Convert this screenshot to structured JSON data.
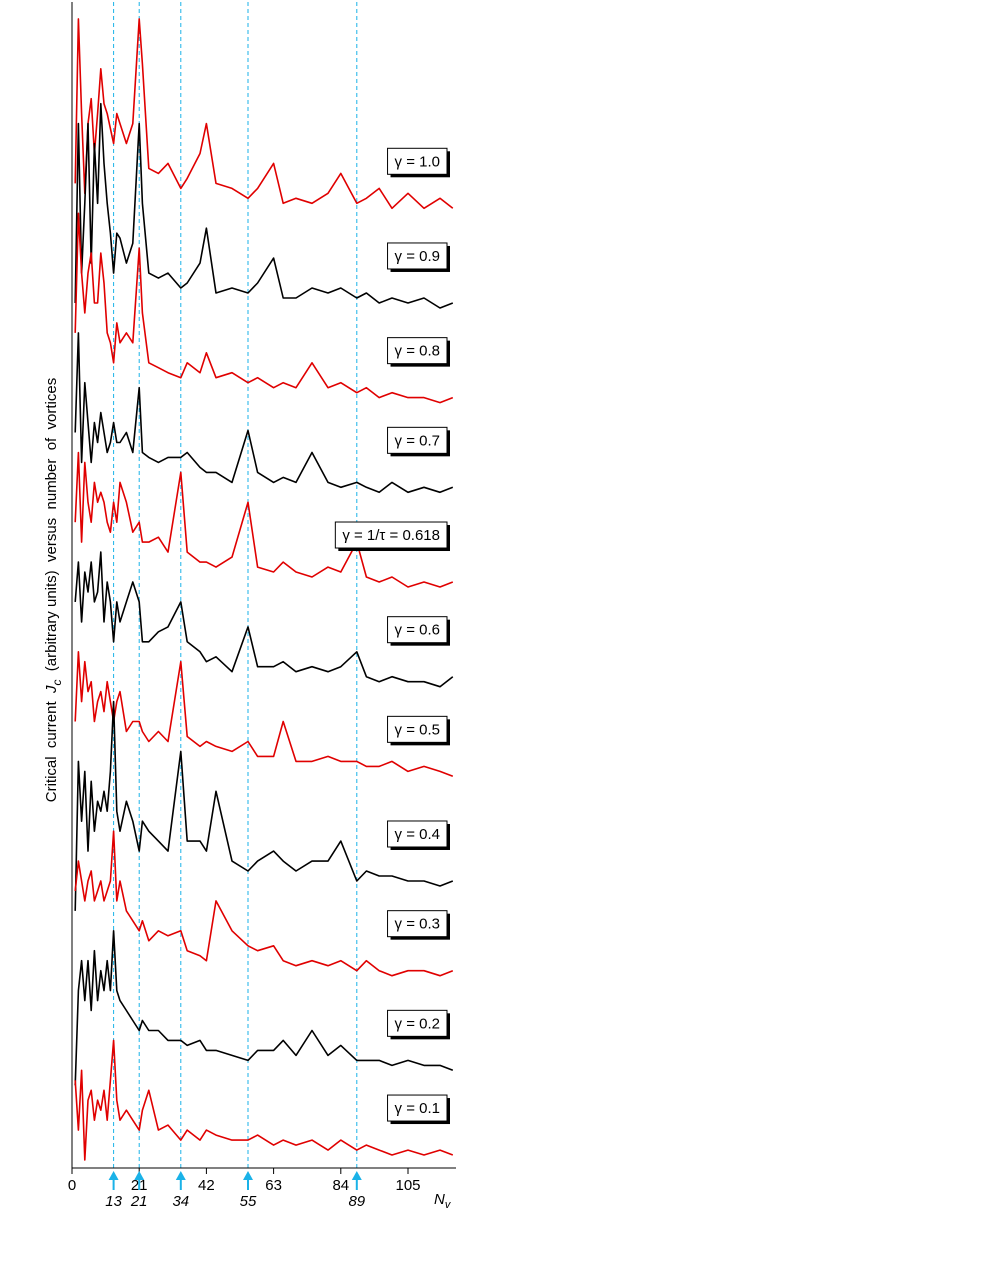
{
  "chart_data": {
    "type": "line",
    "ylabel_parts": [
      "Critical  current  ",
      "J",
      "c",
      "  (arbitrary units)  versus  number  of  vortices"
    ],
    "xlabel": "N",
    "xlabel_subscript": "v",
    "xlim": [
      0,
      120
    ],
    "ylim": [
      0,
      1170
    ],
    "xticks": [
      0,
      21,
      42,
      63,
      84,
      105
    ],
    "marker_ticks": [
      13,
      21,
      34,
      55,
      89
    ],
    "marker_color": "#1ab2e8",
    "x": [
      1,
      2,
      3,
      4,
      5,
      6,
      7,
      8,
      9,
      10,
      11,
      12,
      13,
      14,
      15,
      17,
      19,
      21,
      22,
      24,
      27,
      30,
      34,
      36,
      40,
      42,
      45,
      50,
      55,
      58,
      63,
      66,
      70,
      75,
      80,
      84,
      89,
      92,
      96,
      100,
      105,
      110,
      115,
      119
    ],
    "series": [
      {
        "name": "γ = 1.0",
        "color": "#e00000",
        "values": [
          988,
          1153,
          1058,
          978,
          1048,
          1073,
          1018,
          1058,
          1103,
          1068,
          1058,
          1043,
          1028,
          1058,
          1048,
          1028,
          1048,
          1153,
          1108,
          1003,
          998,
          1008,
          983,
          993,
          1018,
          1048,
          988,
          983,
          973,
          983,
          1008,
          968,
          973,
          968,
          978,
          998,
          968,
          973,
          983,
          963,
          978,
          963,
          973,
          963
        ]
      },
      {
        "name": "γ = 0.9",
        "color": "#000000",
        "values": [
          868,
          1048,
          898,
          968,
          1048,
          908,
          1028,
          968,
          1068,
          1008,
          968,
          938,
          898,
          938,
          933,
          908,
          928,
          1048,
          968,
          898,
          893,
          898,
          883,
          888,
          908,
          943,
          878,
          883,
          878,
          888,
          913,
          873,
          873,
          883,
          878,
          883,
          873,
          878,
          868,
          873,
          868,
          873,
          863,
          868
        ]
      },
      {
        "name": "γ = 0.8",
        "color": "#e00000",
        "values": [
          838,
          958,
          898,
          858,
          898,
          918,
          868,
          868,
          918,
          888,
          838,
          828,
          808,
          848,
          828,
          838,
          828,
          923,
          858,
          808,
          803,
          798,
          793,
          808,
          798,
          818,
          793,
          798,
          788,
          793,
          783,
          788,
          783,
          808,
          783,
          788,
          778,
          783,
          773,
          778,
          773,
          773,
          768,
          773
        ]
      },
      {
        "name": "γ = 0.7",
        "color": "#000000",
        "values": [
          738,
          838,
          708,
          788,
          748,
          708,
          748,
          728,
          758,
          738,
          718,
          728,
          748,
          728,
          728,
          738,
          718,
          783,
          718,
          713,
          708,
          713,
          713,
          718,
          703,
          698,
          698,
          688,
          740,
          698,
          688,
          693,
          688,
          718,
          688,
          683,
          688,
          683,
          678,
          688,
          678,
          683,
          678,
          683
        ]
      },
      {
        "name": "γ = 1/τ = 0.618",
        "color": "#e00000",
        "values": [
          648,
          718,
          628,
          708,
          668,
          648,
          688,
          668,
          678,
          668,
          648,
          638,
          668,
          648,
          688,
          668,
          638,
          648,
          628,
          628,
          633,
          618,
          698,
          618,
          608,
          608,
          603,
          613,
          668,
          603,
          598,
          608,
          598,
          593,
          603,
          598,
          628,
          593,
          588,
          593,
          583,
          588,
          583,
          588
        ]
      },
      {
        "name": "γ = 0.6",
        "color": "#000000",
        "values": [
          568,
          608,
          548,
          598,
          578,
          608,
          568,
          578,
          618,
          548,
          588,
          568,
          528,
          568,
          548,
          568,
          588,
          568,
          528,
          528,
          538,
          543,
          568,
          528,
          518,
          508,
          513,
          498,
          543,
          503,
          503,
          508,
          498,
          503,
          498,
          503,
          518,
          493,
          488,
          493,
          488,
          488,
          483,
          493
        ]
      },
      {
        "name": "γ = 0.5",
        "color": "#e00000",
        "values": [
          448,
          518,
          468,
          508,
          478,
          488,
          448,
          468,
          478,
          458,
          488,
          468,
          448,
          468,
          478,
          438,
          448,
          448,
          438,
          428,
          438,
          428,
          508,
          433,
          423,
          428,
          423,
          418,
          428,
          413,
          413,
          448,
          408,
          408,
          413,
          408,
          408,
          403,
          403,
          408,
          398,
          403,
          398,
          393
        ]
      },
      {
        "name": "γ = 0.4",
        "color": "#000000",
        "values": [
          258,
          408,
          348,
          398,
          318,
          388,
          338,
          368,
          358,
          378,
          358,
          398,
          468,
          358,
          338,
          368,
          348,
          318,
          348,
          338,
          328,
          318,
          418,
          328,
          328,
          318,
          378,
          308,
          298,
          308,
          318,
          308,
          298,
          308,
          308,
          328,
          288,
          298,
          293,
          293,
          288,
          288,
          283,
          288
        ]
      },
      {
        "name": "γ = 0.3",
        "color": "#e00000",
        "values": [
          278,
          308,
          288,
          268,
          288,
          298,
          268,
          278,
          288,
          268,
          278,
          288,
          338,
          268,
          288,
          258,
          248,
          238,
          248,
          228,
          238,
          233,
          238,
          218,
          213,
          208,
          268,
          238,
          223,
          218,
          223,
          208,
          203,
          208,
          203,
          208,
          198,
          208,
          198,
          193,
          198,
          198,
          193,
          198
        ]
      },
      {
        "name": "γ = 0.2",
        "color": "#000000",
        "values": [
          83,
          178,
          208,
          168,
          208,
          158,
          218,
          168,
          198,
          178,
          208,
          178,
          238,
          178,
          168,
          158,
          148,
          138,
          148,
          138,
          138,
          128,
          128,
          123,
          128,
          118,
          118,
          113,
          108,
          118,
          118,
          128,
          113,
          138,
          113,
          123,
          108,
          108,
          108,
          103,
          108,
          103,
          103,
          98
        ]
      },
      {
        "name": "γ = 0.1",
        "color": "#e00000",
        "values": [
          88,
          38,
          98,
          8,
          68,
          78,
          48,
          68,
          58,
          78,
          48,
          88,
          128,
          68,
          48,
          58,
          48,
          38,
          58,
          78,
          38,
          43,
          28,
          38,
          28,
          38,
          33,
          28,
          28,
          33,
          23,
          28,
          23,
          28,
          18,
          28,
          18,
          23,
          18,
          13,
          18,
          13,
          18,
          13
        ]
      }
    ]
  }
}
